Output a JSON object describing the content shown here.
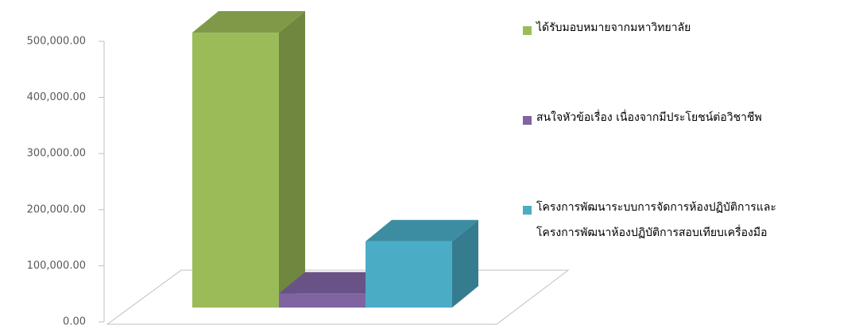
{
  "chart_data": {
    "type": "bar3d",
    "series": [
      {
        "name": "ได้รับมอบหมายจากมหาวิทยาลัย",
        "color": "#9bbb59",
        "values": [
          490000
        ]
      },
      {
        "name": "สนใจหัวข้อเรื่อง เนื่องจากมีประโยชน์ต่อวิชาชีพ",
        "color": "#8064a2",
        "values": [
          25000
        ]
      },
      {
        "name": "โครงการพัฒนาระบบการจัดการห้องปฏิบัติการและ\nโครงการพัฒนาห้องปฏิบัติการสอบเทียบเครื่องมือ",
        "color": "#4bacc6",
        "values": [
          118000
        ]
      }
    ],
    "ylim": [
      0,
      500000
    ],
    "yticks": [
      {
        "value": 0,
        "label": "0.00"
      },
      {
        "value": 100000,
        "label": "100,000.00"
      },
      {
        "value": 200000,
        "label": "200,000.00"
      },
      {
        "value": 300000,
        "label": "300,000.00"
      },
      {
        "value": 400000,
        "label": "400,000.00"
      },
      {
        "value": 500000,
        "label": "500,000.00"
      }
    ],
    "legend": "right"
  }
}
